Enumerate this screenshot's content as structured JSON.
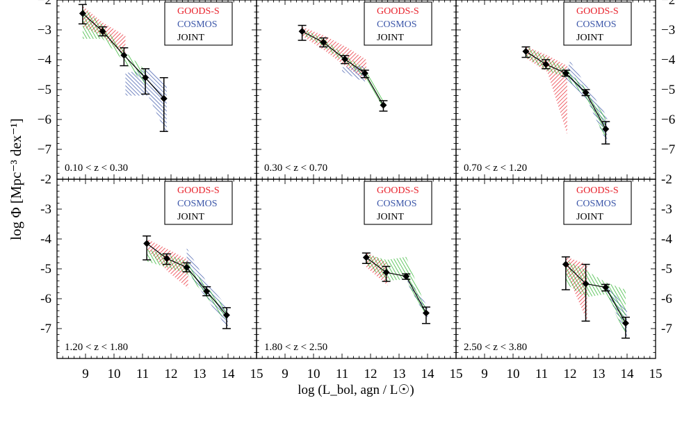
{
  "chart_data": {
    "type": "line",
    "ylabel": "log Φ [Mpc⁻³ dex⁻¹]",
    "xlabel": "log (L_bol, agn / L☉)",
    "xlim": [
      8,
      15
    ],
    "ylim": [
      -8,
      -2
    ],
    "x_ticks": [
      9,
      10,
      11,
      12,
      13,
      14,
      15
    ],
    "y_ticks": [
      -2,
      -3,
      -4,
      -5,
      -6,
      -7
    ],
    "legend": [
      {
        "name": "GOODS-S",
        "color": "#e8202a"
      },
      {
        "name": "COSMOS",
        "color": "#3a55a8"
      },
      {
        "name": "JOINT",
        "color": "#000000"
      }
    ],
    "band_colors": {
      "goods": "#e8202a",
      "cosmos": "#3a55a8",
      "joint": "#22b022"
    },
    "panels": [
      {
        "label": "0.10 < z < 0.30",
        "joint": {
          "x": [
            8.9,
            9.6,
            10.35,
            11.1,
            11.75
          ],
          "y": [
            -2.45,
            -3.05,
            -3.85,
            -4.6,
            -5.3
          ],
          "err_lo": [
            0.35,
            0.15,
            0.35,
            0.55,
            1.1
          ],
          "err_hi": [
            0.3,
            0.15,
            0.25,
            0.3,
            0.7
          ]
        },
        "goods_band": {
          "x": [
            8.9,
            9.6,
            10.4,
            10.4,
            9.6,
            8.9
          ],
          "y": [
            -2.2,
            -2.75,
            -3.2,
            -3.9,
            -3.2,
            -2.9
          ]
        },
        "cosmos_band": {
          "x": [
            10.4,
            11.2,
            11.85,
            11.85,
            11.2,
            10.4,
            10.4
          ],
          "y": [
            -4.45,
            -4.3,
            -4.85,
            -6.5,
            -5.2,
            -5.2,
            -4.45
          ]
        },
        "joint_band": {
          "x": [
            8.9,
            9.6,
            10.35,
            11.1,
            11.1,
            10.35,
            9.6,
            8.9
          ],
          "y": [
            -2.25,
            -2.85,
            -3.7,
            -4.35,
            -4.85,
            -4.05,
            -3.3,
            -3.3
          ]
        }
      },
      {
        "label": "0.30 < z < 0.70",
        "joint": {
          "x": [
            9.6,
            10.35,
            11.1,
            11.8,
            12.45
          ],
          "y": [
            -3.05,
            -3.42,
            -3.98,
            -4.45,
            -5.52
          ],
          "err_lo": [
            0.3,
            0.15,
            0.15,
            0.15,
            0.2
          ],
          "err_hi": [
            0.2,
            0.15,
            0.12,
            0.1,
            0.15
          ]
        },
        "goods_band": {
          "x": [
            9.6,
            10.4,
            11.2,
            11.85,
            11.85,
            11.1,
            10.4,
            9.6
          ],
          "y": [
            -2.9,
            -3.2,
            -3.6,
            -4.0,
            -4.7,
            -4.2,
            -3.7,
            -3.2
          ]
        },
        "cosmos_band": {
          "x": [
            11.0,
            11.8,
            11.8,
            11.0
          ],
          "y": [
            -4.25,
            -4.2,
            -4.75,
            -4.4
          ]
        },
        "joint_band": {
          "x": [
            9.6,
            10.35,
            11.1,
            11.8,
            12.45,
            12.45,
            11.8,
            11.1,
            10.35,
            9.6
          ],
          "y": [
            -2.95,
            -3.3,
            -3.85,
            -4.3,
            -5.35,
            -5.7,
            -4.6,
            -4.1,
            -3.55,
            -3.15
          ]
        }
      },
      {
        "label": "0.70 < z < 1.20",
        "joint": {
          "x": [
            10.45,
            11.15,
            11.85,
            12.55,
            13.25
          ],
          "y": [
            -3.72,
            -4.15,
            -4.45,
            -5.1,
            -6.32
          ],
          "err_lo": [
            0.2,
            0.15,
            0.1,
            0.1,
            0.5
          ],
          "err_hi": [
            0.15,
            0.15,
            0.1,
            0.1,
            0.25
          ]
        },
        "goods_band": {
          "x": [
            10.45,
            11.2,
            11.9,
            11.9,
            11.2,
            10.45
          ],
          "y": [
            -3.55,
            -3.85,
            -4.2,
            -6.5,
            -4.4,
            -3.95
          ]
        },
        "cosmos_band": {
          "x": [
            11.8,
            12.0,
            12.6,
            13.3,
            13.3,
            12.6,
            11.8
          ],
          "y": [
            -4.6,
            -4.05,
            -4.9,
            -5.9,
            -6.8,
            -5.35,
            -4.6
          ]
        },
        "joint_band": {
          "x": [
            10.45,
            11.15,
            11.85,
            12.55,
            13.25,
            13.25,
            12.55,
            11.85,
            11.15,
            10.45
          ],
          "y": [
            -3.55,
            -3.9,
            -4.3,
            -4.95,
            -5.95,
            -6.65,
            -5.25,
            -4.6,
            -4.35,
            -3.9
          ]
        }
      },
      {
        "label": "1.20 < z < 1.80",
        "joint": {
          "x": [
            11.15,
            11.85,
            12.55,
            13.25,
            13.95
          ],
          "y": [
            -4.15,
            -4.65,
            -4.95,
            -5.75,
            -6.55
          ],
          "err_lo": [
            0.55,
            0.2,
            0.15,
            0.15,
            0.45
          ],
          "err_hi": [
            0.25,
            0.15,
            0.15,
            0.15,
            0.25
          ]
        },
        "goods_band": {
          "x": [
            11.15,
            11.9,
            12.6,
            12.6,
            11.9,
            11.15
          ],
          "y": [
            -4.0,
            -4.35,
            -4.7,
            -5.65,
            -5.1,
            -4.35
          ]
        },
        "cosmos_band": {
          "x": [
            12.55,
            13.25,
            14.0,
            14.0,
            13.25,
            12.55
          ],
          "y": [
            -4.3,
            -5.45,
            -6.3,
            -7.0,
            -6.0,
            -5.05
          ]
        },
        "joint_band": {
          "x": [
            11.15,
            11.85,
            12.55,
            13.25,
            13.95,
            13.95,
            13.25,
            12.55,
            11.85,
            11.15
          ],
          "y": [
            -4.35,
            -4.5,
            -4.75,
            -5.6,
            -6.35,
            -6.8,
            -5.95,
            -5.15,
            -4.95,
            -4.75
          ]
        }
      },
      {
        "label": "1.80 < z < 2.50",
        "joint": {
          "x": [
            11.85,
            12.55,
            13.25,
            13.95
          ],
          "y": [
            -4.62,
            -5.12,
            -5.25,
            -6.48
          ],
          "err_lo": [
            0.2,
            0.3,
            0.1,
            0.35
          ],
          "err_hi": [
            0.15,
            0.2,
            0.08,
            0.2
          ]
        },
        "goods_band": {
          "x": [
            11.85,
            12.6,
            12.6,
            11.85
          ],
          "y": [
            -4.45,
            -4.8,
            -5.55,
            -4.95
          ]
        },
        "cosmos_band": {
          "x": [
            13.3,
            14.0,
            14.0,
            13.3
          ],
          "y": [
            -5.3,
            -6.25,
            -6.7,
            -5.5
          ]
        },
        "joint_band": {
          "x": [
            11.85,
            12.55,
            13.25,
            13.95,
            13.95,
            13.25,
            12.55,
            11.85
          ],
          "y": [
            -4.5,
            -4.7,
            -4.6,
            -6.3,
            -6.7,
            -5.35,
            -5.4,
            -4.85
          ]
        }
      },
      {
        "label": "2.50 < z < 3.80",
        "joint": {
          "x": [
            11.85,
            12.55,
            13.25,
            13.95
          ],
          "y": [
            -4.85,
            -5.5,
            -5.62,
            -6.82
          ],
          "err_lo": [
            0.85,
            1.25,
            0.12,
            0.5
          ],
          "err_hi": [
            0.25,
            0.65,
            0.1,
            0.2
          ]
        },
        "goods_band": {
          "x": [
            11.85,
            12.6,
            12.6,
            11.85
          ],
          "y": [
            -4.6,
            -4.85,
            -6.75,
            -5.1
          ]
        },
        "cosmos_band": {
          "x": [
            13.3,
            14.0,
            14.0,
            13.3
          ],
          "y": [
            -5.5,
            -6.4,
            -7.3,
            -5.8
          ]
        },
        "joint_band": {
          "x": [
            11.85,
            12.55,
            13.25,
            13.95,
            13.95,
            13.25,
            12.55,
            11.85
          ],
          "y": [
            -4.7,
            -5.05,
            -5.45,
            -5.7,
            -7.2,
            -5.85,
            -5.95,
            -5.5
          ]
        }
      }
    ]
  }
}
